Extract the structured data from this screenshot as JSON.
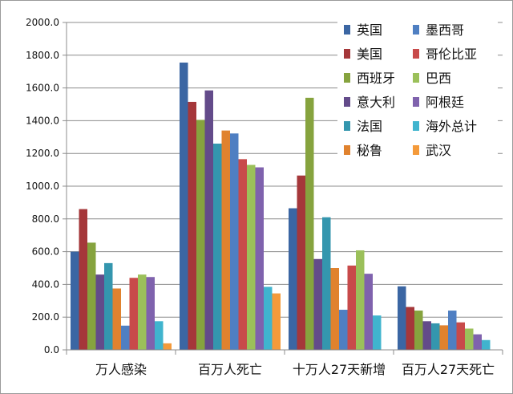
{
  "chart_data": {
    "type": "bar",
    "title": "",
    "xlabel": "",
    "ylabel": "",
    "ylim": [
      0,
      2000
    ],
    "y_ticks": [
      "0.0",
      "200.0",
      "400.0",
      "600.0",
      "800.0",
      "1000.0",
      "1200.0",
      "1400.0",
      "1600.0",
      "1800.0",
      "2000.0"
    ],
    "grid": true,
    "legend_position": "top-right",
    "categories": [
      "万人感染",
      "百万人死亡",
      "十万人27天新增",
      "百万人27天死亡"
    ],
    "series": [
      {
        "name": "英国",
        "color": "#3b66a3",
        "values": [
          600,
          1755,
          865,
          388
        ]
      },
      {
        "name": "美国",
        "color": "#a5373a",
        "values": [
          860,
          1515,
          1065,
          262
        ]
      },
      {
        "name": "西班牙",
        "color": "#86a33e",
        "values": [
          655,
          1405,
          1540,
          240
        ]
      },
      {
        "name": "意大利",
        "color": "#634b8a",
        "values": [
          460,
          1585,
          555,
          175
        ]
      },
      {
        "name": "法国",
        "color": "#3496ae",
        "values": [
          530,
          1260,
          810,
          162
        ]
      },
      {
        "name": "秘鲁",
        "color": "#e0822e",
        "values": [
          375,
          1340,
          500,
          150
        ]
      },
      {
        "name": "墨西哥",
        "color": "#4f7fc2",
        "values": [
          148,
          1322,
          245,
          240
        ]
      },
      {
        "name": "哥伦比亚",
        "color": "#c84a4a",
        "values": [
          440,
          1165,
          515,
          168
        ]
      },
      {
        "name": "巴西",
        "color": "#9bc05a",
        "values": [
          460,
          1130,
          608,
          130
        ]
      },
      {
        "name": "阿根廷",
        "color": "#7f62ad",
        "values": [
          445,
          1115,
          465,
          95
        ]
      },
      {
        "name": "海外总计",
        "color": "#40b4ce",
        "values": [
          175,
          385,
          210,
          60
        ]
      },
      {
        "name": "武汉",
        "color": "#f49a3a",
        "values": [
          40,
          345,
          null,
          null
        ]
      }
    ]
  }
}
